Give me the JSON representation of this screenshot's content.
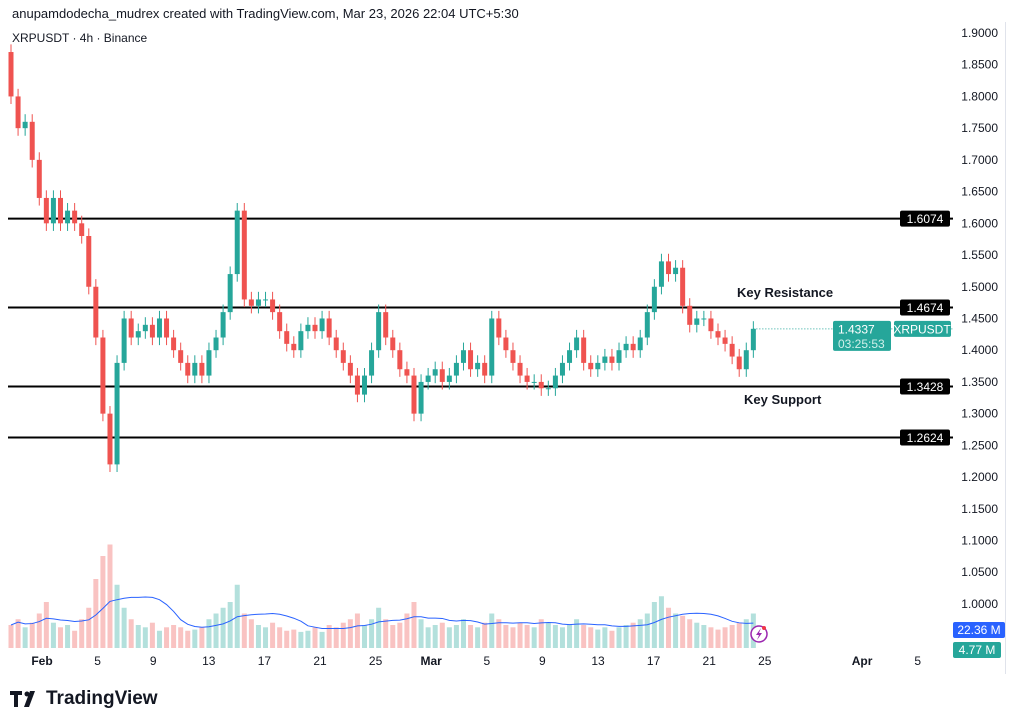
{
  "header": {
    "attribution": "anupamdodecha_mudrex created with TradingView.com, Mar 23, 2026 22:04 UTC+5:30"
  },
  "symbol_info": "XRPUSDT · 4h · Binance",
  "logo_text": "TradingView",
  "annotations": {
    "resistance": "Key Resistance",
    "support": "Key Support"
  },
  "colors": {
    "up": "#26a69a",
    "down": "#ef5350",
    "volume_ma": "#2962ff",
    "level": "#000000"
  },
  "chart_data": {
    "type": "candlestick",
    "ylim": [
      0.97,
      1.91
    ],
    "y_ticks": [
      "1.9000",
      "1.8500",
      "1.8000",
      "1.7500",
      "1.7000",
      "1.6500",
      "1.6000",
      "1.5500",
      "1.5000",
      "1.4500",
      "1.4000",
      "1.3500",
      "1.3000",
      "1.2500",
      "1.2000",
      "1.1500",
      "1.1000",
      "1.0500",
      "1.0000"
    ],
    "x_ticks": [
      {
        "label": "Feb",
        "day": 1,
        "bold": true
      },
      {
        "label": "5",
        "day": 5
      },
      {
        "label": "9",
        "day": 9
      },
      {
        "label": "13",
        "day": 13
      },
      {
        "label": "17",
        "day": 17
      },
      {
        "label": "21",
        "day": 21
      },
      {
        "label": "25",
        "day": 25
      },
      {
        "label": "Mar",
        "day": 29,
        "bold": true
      },
      {
        "label": "5",
        "day": 33
      },
      {
        "label": "9",
        "day": 37
      },
      {
        "label": "13",
        "day": 41
      },
      {
        "label": "17",
        "day": 45
      },
      {
        "label": "21",
        "day": 49
      },
      {
        "label": "25",
        "day": 53
      },
      {
        "label": "Apr",
        "day": 60,
        "bold": true
      },
      {
        "label": "5",
        "day": 64
      }
    ],
    "first_open": 1.87,
    "closes": [
      1.8,
      1.75,
      1.76,
      1.7,
      1.64,
      1.6,
      1.64,
      1.6,
      1.62,
      1.6,
      1.58,
      1.5,
      1.42,
      1.3,
      1.22,
      1.38,
      1.45,
      1.42,
      1.43,
      1.44,
      1.42,
      1.45,
      1.42,
      1.4,
      1.38,
      1.36,
      1.38,
      1.36,
      1.4,
      1.42,
      1.46,
      1.52,
      1.62,
      1.48,
      1.47,
      1.48,
      1.48,
      1.46,
      1.43,
      1.41,
      1.4,
      1.43,
      1.44,
      1.43,
      1.45,
      1.42,
      1.4,
      1.38,
      1.36,
      1.33,
      1.36,
      1.4,
      1.46,
      1.42,
      1.4,
      1.37,
      1.36,
      1.3,
      1.35,
      1.36,
      1.37,
      1.35,
      1.36,
      1.38,
      1.4,
      1.37,
      1.38,
      1.36,
      1.45,
      1.42,
      1.4,
      1.38,
      1.36,
      1.35,
      1.35,
      1.34,
      1.34,
      1.36,
      1.38,
      1.4,
      1.42,
      1.38,
      1.37,
      1.38,
      1.39,
      1.38,
      1.4,
      1.41,
      1.4,
      1.42,
      1.46,
      1.5,
      1.54,
      1.52,
      1.53,
      1.47,
      1.44,
      1.45,
      1.45,
      1.43,
      1.42,
      1.41,
      1.39,
      1.37,
      1.4,
      1.4337
    ],
    "volumes_m": [
      20,
      25,
      18,
      22,
      30,
      40,
      22,
      18,
      20,
      15,
      25,
      35,
      60,
      80,
      90,
      55,
      35,
      25,
      20,
      18,
      22,
      15,
      18,
      20,
      18,
      15,
      16,
      18,
      25,
      30,
      35,
      40,
      55,
      30,
      25,
      20,
      18,
      22,
      18,
      15,
      16,
      14,
      15,
      18,
      14,
      20,
      18,
      22,
      25,
      30,
      20,
      25,
      35,
      25,
      20,
      22,
      30,
      40,
      25,
      18,
      20,
      22,
      18,
      20,
      25,
      20,
      18,
      22,
      30,
      25,
      20,
      18,
      22,
      20,
      18,
      25,
      22,
      20,
      18,
      20,
      25,
      20,
      18,
      16,
      18,
      15,
      18,
      20,
      22,
      25,
      30,
      40,
      45,
      35,
      30,
      28,
      25,
      22,
      20,
      18,
      16,
      18,
      20,
      22,
      25,
      30
    ],
    "levels": [
      {
        "price": "1.6074"
      },
      {
        "price": "1.4674"
      },
      {
        "price": "1.3428"
      },
      {
        "price": "1.2624"
      }
    ],
    "last_price": {
      "symbol": "XRPUSDT",
      "price": "1.4337",
      "countdown": "03:25:53"
    },
    "volume_labels": {
      "ma": "22.36 M",
      "volume": "4.77 M"
    }
  }
}
